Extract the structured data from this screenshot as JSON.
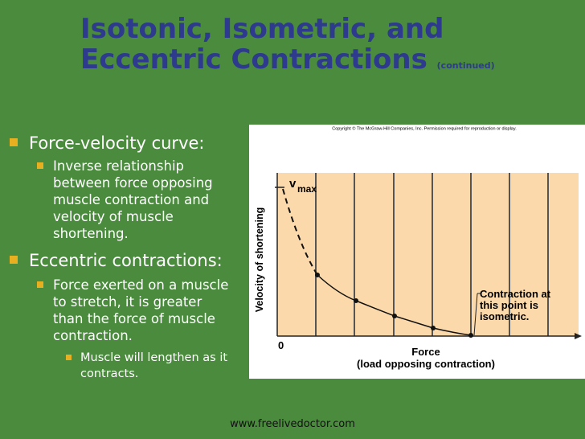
{
  "header": {
    "title_line1": "Isotonic, Isometric, and",
    "title_line2": "Eccentric Contractions",
    "title_note": "(continued)"
  },
  "bullets": [
    {
      "text": "Force-velocity curve:",
      "children": [
        {
          "text": "Inverse relationship between force opposing muscle contraction and velocity of muscle shortening."
        }
      ]
    },
    {
      "text": "Eccentric contractions:",
      "children": [
        {
          "text": "Force exerted on a muscle to stretch, it is greater than the force of muscle contraction.",
          "children": [
            {
              "text": "Muscle will lengthen as it contracts."
            }
          ]
        }
      ]
    }
  ],
  "figure": {
    "copyright": "Copyright © The McGraw-Hill Companies, Inc. Permission required for reproduction or display.",
    "vmax_v": "v",
    "vmax_sub": "max",
    "y_label": "Velocity of shortening",
    "origin": "0",
    "x_label": [
      "Force",
      "(load opposing contraction)"
    ],
    "annotation": [
      "Contraction at",
      "this point is",
      "isometric."
    ]
  },
  "footer": "www.freelivedoctor.com"
}
